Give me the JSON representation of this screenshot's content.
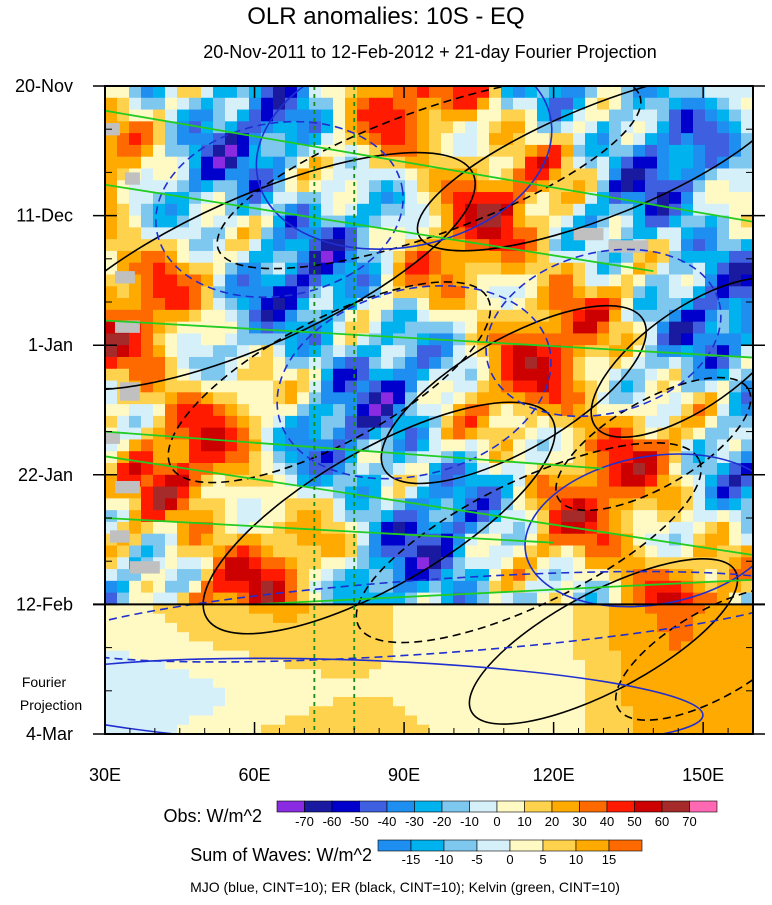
{
  "chart_data": {
    "type": "heatmap",
    "title": "OLR anomalies: 10S - EQ",
    "subtitle": "20-Nov-2011 to 12-Feb-2012 + 21-day Fourier Projection",
    "x_axis": {
      "range": [
        30,
        160
      ],
      "ticks": [
        30,
        60,
        90,
        120,
        150
      ],
      "tick_labels": [
        "30E",
        "60E",
        "90E",
        "120E",
        "150E"
      ]
    },
    "y_axis": {
      "range_days": [
        0,
        105
      ],
      "ticks_days": [
        0,
        21,
        42,
        63,
        84,
        105
      ],
      "tick_labels": [
        "20-Nov",
        "11-Dec",
        "1-Jan",
        "22-Jan",
        "12-Feb",
        "4-Mar"
      ]
    },
    "projection_label": [
      "Fourier",
      "Projection"
    ],
    "observation_end_day": 84,
    "reference_longitudes": [
      72,
      80
    ],
    "colorbars": [
      {
        "label": "Obs: W/m^2",
        "levels": [
          "-70",
          "-60",
          "-50",
          "-40",
          "-30",
          "-20",
          "-10",
          "0",
          "10",
          "20",
          "30",
          "40",
          "50",
          "60",
          "70"
        ],
        "colors": [
          "#8a2be2",
          "#1a1aa0",
          "#0000cd",
          "#3d5fe0",
          "#1e8ff0",
          "#00b2ee",
          "#7ec8f0",
          "#d6f0fa",
          "#fff9c4",
          "#ffd24d",
          "#ffaa00",
          "#ff6a00",
          "#ff1a00",
          "#cc0000",
          "#a52a2a",
          "#ff69b4"
        ]
      },
      {
        "label": "Sum of Waves: W/m^2",
        "levels": [
          "-15",
          "-10",
          "-5",
          "0",
          "5",
          "10",
          "15"
        ],
        "colors": [
          "#1e8ff0",
          "#00b2ee",
          "#7ec8f0",
          "#d6f0fa",
          "#fff9c4",
          "#ffd24d",
          "#ffaa00",
          "#ff6a00"
        ]
      }
    ],
    "legend": "MJO (blue, CINT=10); ER (black, CINT=10); Kelvin (green, CINT=10)",
    "wave_colors": {
      "mjo": "#1f2fd0",
      "er": "#000000",
      "kelvin": "#22cc22",
      "reference_lines": "#1a8a1a"
    }
  }
}
